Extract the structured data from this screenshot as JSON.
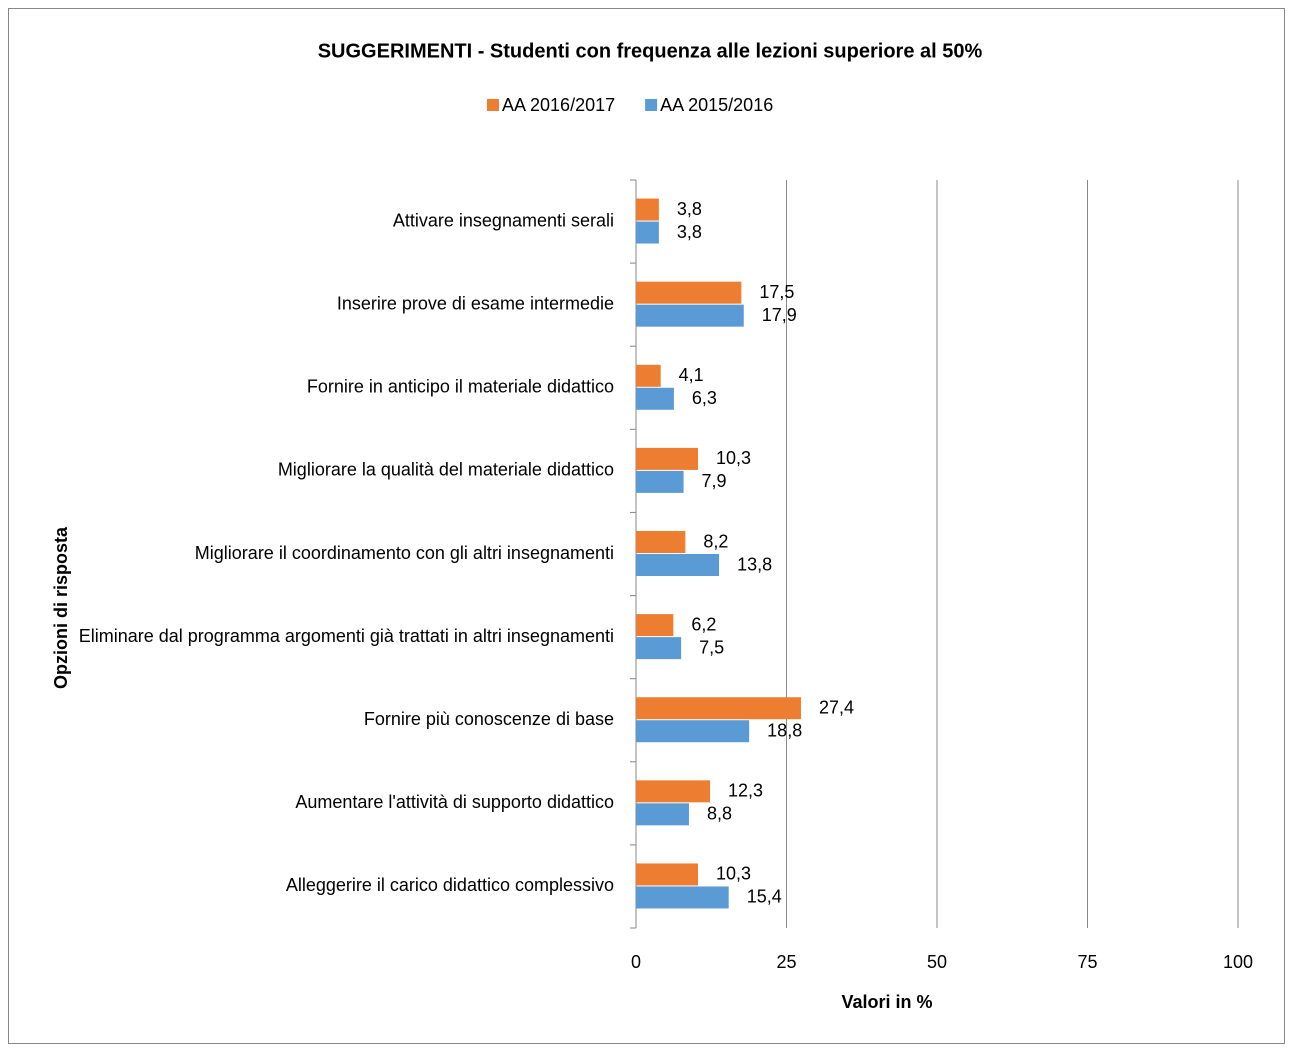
{
  "chart_data": {
    "type": "hbar",
    "title": "SUGGERIMENTI  - Studenti con frequenza alle lezioni superiore al 50%",
    "xlabel": "Valori in %",
    "ylabel": "Opzioni di risposta",
    "categories": [
      "Attivare insegnamenti serali",
      "Inserire prove di esame intermedie",
      "Fornire in anticipo il materiale didattico",
      "Migliorare la qualità del materiale didattico",
      "Migliorare il coordinamento con gli altri insegnamenti",
      "Eliminare dal programma argomenti già trattati in altri insegnamenti",
      "Fornire più conoscenze di base",
      "Aumentare l'attività di supporto didattico",
      "Alleggerire il carico didattico complessivo"
    ],
    "series": [
      {
        "name": "AA 2016/2017",
        "color": "#ed7d31",
        "values": [
          3.8,
          17.5,
          4.1,
          10.3,
          8.2,
          6.2,
          27.4,
          12.3,
          10.3
        ],
        "value_labels": [
          "3,8",
          "17,5",
          "4,1",
          "10,3",
          "8,2",
          "6,2",
          "27,4",
          "12,3",
          "10,3"
        ]
      },
      {
        "name": "AA 2015/2016",
        "color": "#5b9bd5",
        "values": [
          3.8,
          17.9,
          6.3,
          7.9,
          13.8,
          7.5,
          18.8,
          8.8,
          15.4
        ],
        "value_labels": [
          "3,8",
          "17,9",
          "6,3",
          "7,9",
          "13,8",
          "7,5",
          "18,8",
          "8,8",
          "15,4"
        ]
      }
    ],
    "xlim": [
      0,
      100
    ],
    "xticks": [
      0,
      25,
      50,
      75,
      100
    ],
    "grid": true,
    "legend": "top"
  }
}
